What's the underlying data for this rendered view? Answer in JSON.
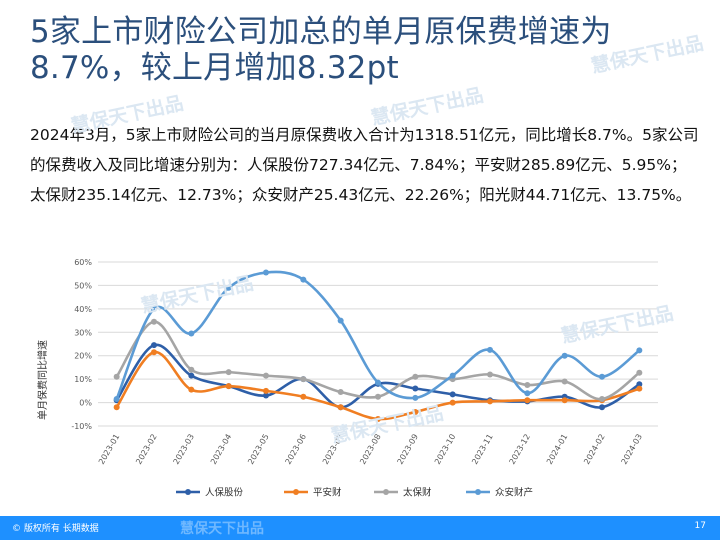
{
  "slide": {
    "title": "5家上市财险公司加总的单月原保费增速为8.7%，较上月增加8.32pt",
    "paragraph": "2024年3月，5家上市财险公司的当月原保费收入合计为1318.51亿元，同比增长8.7%。5家公司的保费收入及同比增速分别为：人保股份727.34亿元、7.84%；平安财285.89亿元、5.95%；太保财235.14亿元、12.73%；众安财产25.43亿元、22.26%；阳光财44.71亿元、13.75%。",
    "watermark": "慧保天下出品",
    "footer_copyright": "© 版权所有 长期数据",
    "page_number": "17"
  },
  "colors": {
    "title": "#2b4f7c",
    "footer": "#1e90ff",
    "grid": "#d9d9d9"
  },
  "chart_data": {
    "type": "line",
    "x": [
      "2023-01",
      "2023-02",
      "2023-03",
      "2023-04",
      "2023-05",
      "2023-06",
      "2023-07",
      "2023-08",
      "2023-09",
      "2023-10",
      "2023-11",
      "2023-12",
      "2024-01",
      "2024-02",
      "2024-03"
    ],
    "ylabel": "单月保费同比增速",
    "ylim": [
      -10,
      60
    ],
    "yticks": [
      -10,
      0,
      10,
      20,
      30,
      40,
      50,
      60
    ],
    "ytick_labels": [
      "-10%",
      "0%",
      "10%",
      "20%",
      "30%",
      "40%",
      "50%",
      "60%"
    ],
    "grid": true,
    "legend_position": "bottom",
    "series": [
      {
        "name": "人保股份",
        "color": "#2e5fa8",
        "values": [
          1,
          24.5,
          11.5,
          7,
          3,
          10,
          -2,
          8,
          6,
          3.5,
          1,
          0.5,
          2.5,
          -2,
          7.84
        ]
      },
      {
        "name": "平安财",
        "color": "#f07e22",
        "values": [
          -2,
          21.5,
          5.5,
          7,
          5,
          2.5,
          -2,
          -7,
          -4,
          0,
          0.5,
          1,
          1,
          1,
          5.95
        ]
      },
      {
        "name": "太保财",
        "color": "#a5a5a5",
        "values": [
          11,
          34.5,
          14,
          13,
          11.5,
          10,
          4.5,
          2.5,
          11,
          10,
          12,
          7.5,
          9,
          1.5,
          12.73
        ]
      },
      {
        "name": "众安财产",
        "color": "#5b9bd5",
        "values": [
          1.5,
          40,
          29.5,
          49,
          55.5,
          52.5,
          35,
          8.5,
          2,
          11.5,
          22.5,
          4,
          20,
          11,
          22.26
        ]
      }
    ]
  }
}
